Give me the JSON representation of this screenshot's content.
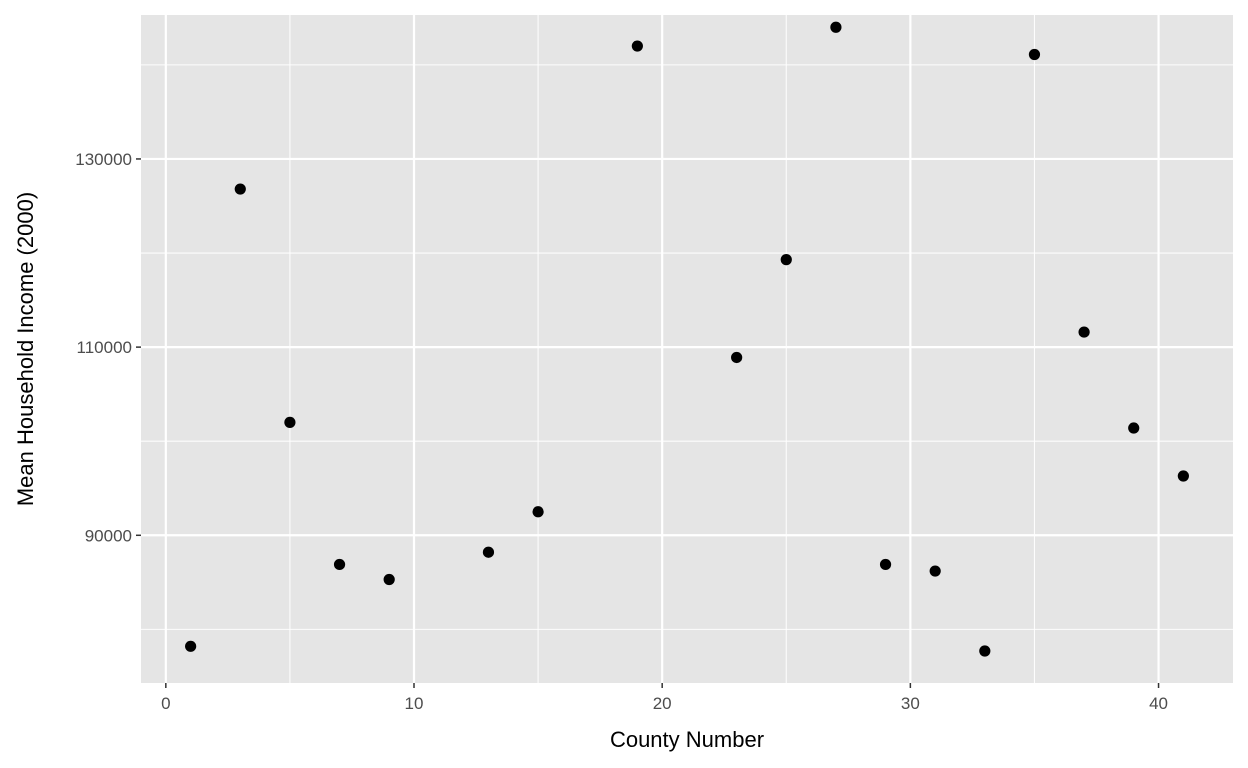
{
  "chart_data": {
    "type": "scatter",
    "title": "",
    "xlabel": "County Number",
    "ylabel": "Mean Household Income (2000)",
    "xlim": [
      -1,
      43
    ],
    "ylim": [
      74300,
      145300
    ],
    "x_ticks": [
      0,
      10,
      20,
      30,
      40
    ],
    "x_minor_ticks": [
      5,
      15,
      25,
      35
    ],
    "y_ticks": [
      90000,
      110000,
      130000
    ],
    "y_minor_ticks": [
      80000,
      100000,
      120000,
      140000
    ],
    "grid": true,
    "legend": "none",
    "colors": {
      "panel": "#e5e5e5",
      "grid": "#ffffff",
      "point": "#000000",
      "tick_text": "#4d4d4d",
      "tick_mark": "#333333"
    },
    "points": [
      {
        "x": 1,
        "y": 78200
      },
      {
        "x": 3,
        "y": 126800
      },
      {
        "x": 5,
        "y": 102000
      },
      {
        "x": 7,
        "y": 86900
      },
      {
        "x": 9,
        "y": 85300
      },
      {
        "x": 13,
        "y": 88200
      },
      {
        "x": 15,
        "y": 92500
      },
      {
        "x": 19,
        "y": 142000
      },
      {
        "x": 23,
        "y": 108900
      },
      {
        "x": 25,
        "y": 119300
      },
      {
        "x": 27,
        "y": 144000
      },
      {
        "x": 29,
        "y": 86900
      },
      {
        "x": 31,
        "y": 86200
      },
      {
        "x": 33,
        "y": 77700
      },
      {
        "x": 35,
        "y": 141100
      },
      {
        "x": 37,
        "y": 111600
      },
      {
        "x": 39,
        "y": 101400
      },
      {
        "x": 41,
        "y": 96300
      }
    ]
  }
}
